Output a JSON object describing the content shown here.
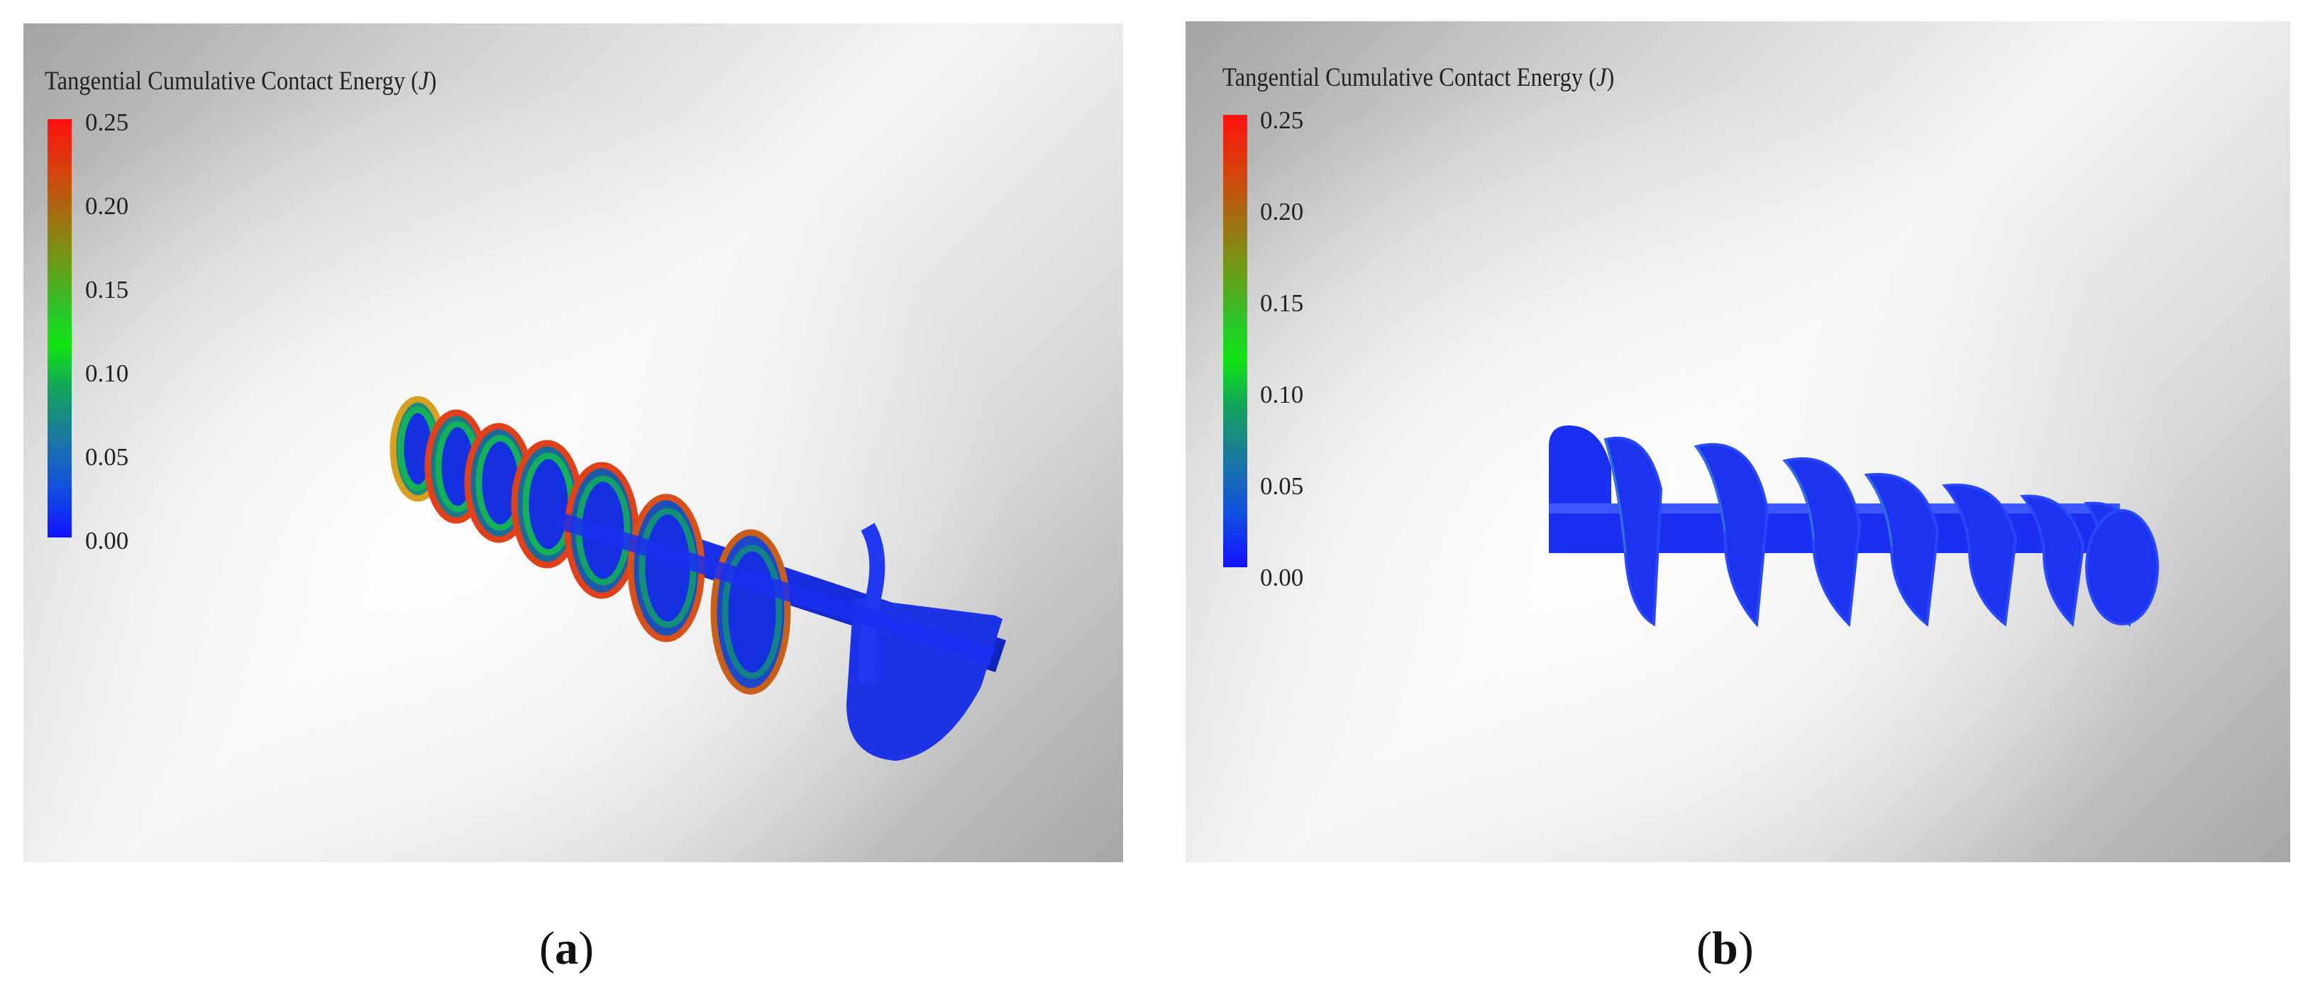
{
  "figure": {
    "panels": [
      {
        "id": "a",
        "legend_title": "Tangential Cumulative Contact Energy",
        "legend_unit": "J",
        "legend_ticks": [
          "0.25",
          "0.20",
          "0.15",
          "0.10",
          "0.05",
          "0.00"
        ],
        "caption_letter": "a"
      },
      {
        "id": "b",
        "legend_title": "Tangential Cumulative Contact Energy",
        "legend_unit": "J",
        "legend_ticks": [
          "0.25",
          "0.20",
          "0.15",
          "0.10",
          "0.05",
          "0.00"
        ],
        "caption_letter": "b"
      }
    ]
  },
  "colors": {
    "colorbar_max": "#ff1010",
    "colorbar_mid": "#11e411",
    "colorbar_min": "#1212ff",
    "screw_body": "#1a2ff0",
    "wear_edge_hot": "#e0401a"
  },
  "icons": [
    "screw-conveyor-a-render",
    "screw-conveyor-b-render"
  ]
}
